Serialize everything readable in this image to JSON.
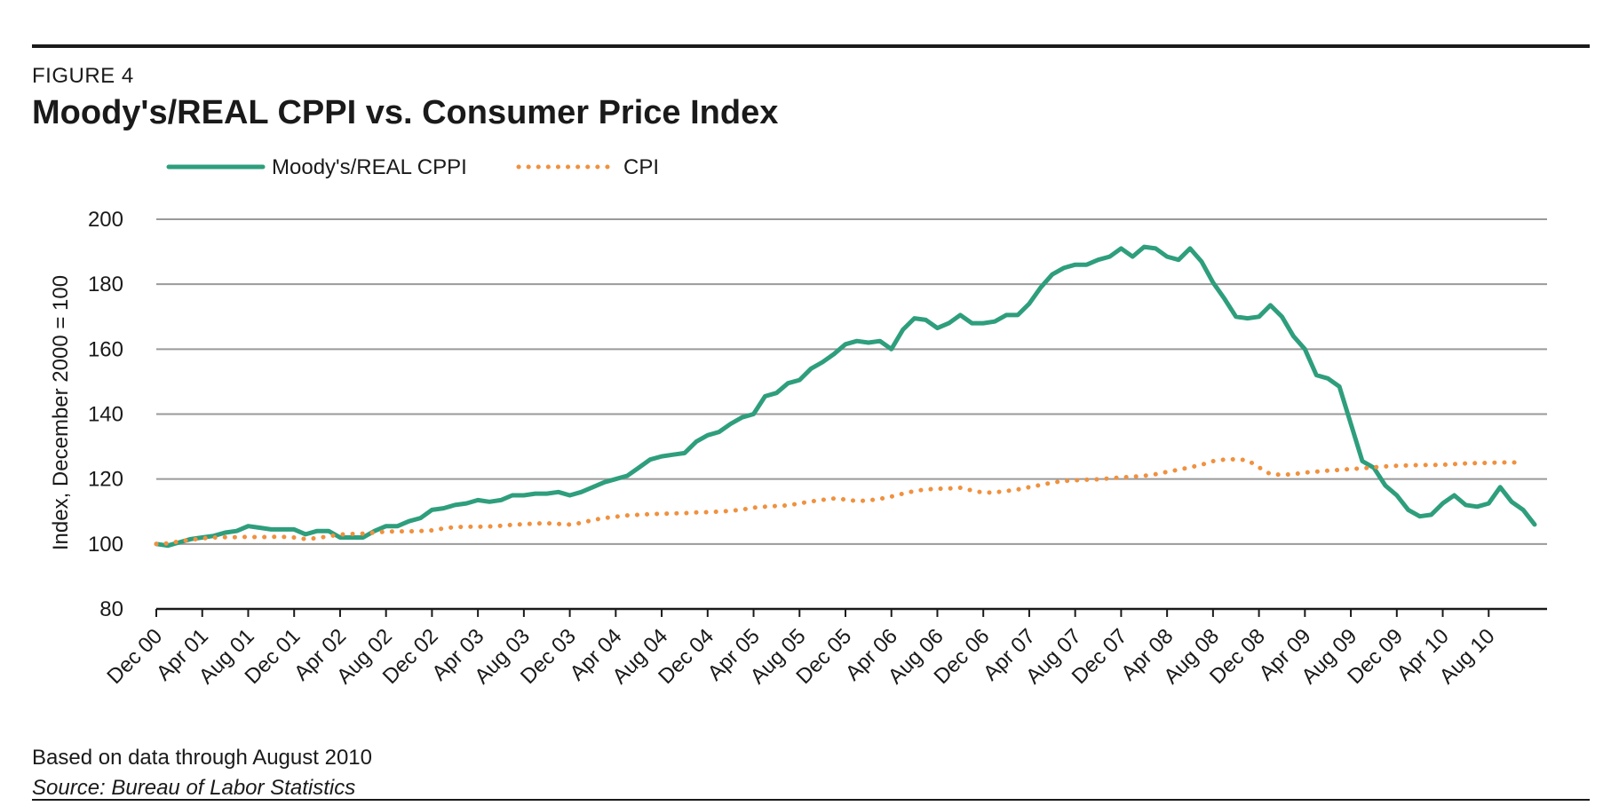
{
  "figure": {
    "label": "FIGURE 4",
    "title": "Moody's/REAL CPPI vs. Consumer Price Index",
    "note": "Based on data through August 2010",
    "source": "Source: Bureau of Labor Statistics"
  },
  "colors": {
    "cppi": "#2e9e7c",
    "cpi": "#f0913f",
    "grid": "#9a9a9a",
    "axis": "#1a1a1a"
  },
  "chart_data": {
    "type": "line",
    "title": "Moody's/REAL CPPI vs. Consumer Price Index",
    "xlabel": "",
    "ylabel": "Index, December 2000 = 100",
    "ylim": [
      80,
      200
    ],
    "yticks": [
      80,
      100,
      120,
      140,
      160,
      180,
      200
    ],
    "grid": true,
    "legend_position": "top-left",
    "x_tick_labels": [
      "Dec 00",
      "Apr 01",
      "Aug 01",
      "Dec 01",
      "Apr 02",
      "Aug 02",
      "Dec 02",
      "Apr 03",
      "Aug 03",
      "Dec 03",
      "Apr 04",
      "Aug 04",
      "Dec 04",
      "Apr 05",
      "Aug 05",
      "Dec 05",
      "Apr 06",
      "Aug 06",
      "Dec 06",
      "Apr 07",
      "Aug 07",
      "Dec 07",
      "Apr 08",
      "Aug 08",
      "Dec 08",
      "Apr 09",
      "Aug 09",
      "Dec 09",
      "Apr 10",
      "Aug 10"
    ],
    "x_start": "Dec 00",
    "x_end": "Aug 10",
    "series": [
      {
        "name": "Moody's/REAL CPPI",
        "style": "solid",
        "values": [
          100,
          99.5,
          100.5,
          101.5,
          102,
          102.5,
          103.5,
          104,
          105.5,
          105,
          104.5,
          104.5,
          104.5,
          103,
          104,
          104,
          102,
          102,
          102,
          104,
          105.5,
          105.5,
          107,
          108,
          110.5,
          111,
          112,
          112.5,
          113.5,
          113,
          113.5,
          115,
          115,
          115.5,
          115.5,
          116,
          115,
          116,
          117.5,
          119,
          120,
          121,
          123.5,
          126,
          127,
          127.5,
          128,
          131.5,
          133.5,
          134.5,
          137,
          139,
          140,
          145.5,
          146.5,
          149.5,
          150.5,
          154,
          156,
          158.5,
          161.5,
          162.5,
          162,
          162.5,
          160,
          166,
          169.5,
          169,
          166.5,
          168,
          170.5,
          168,
          168,
          168.5,
          170.5,
          170.5,
          174,
          179,
          183,
          185,
          186,
          186,
          187.5,
          188.5,
          191,
          188.5,
          191.5,
          191,
          188.5,
          187.5,
          191,
          187,
          180.5,
          175.5,
          170,
          169.5,
          170,
          173.5,
          170,
          164,
          160,
          152,
          151,
          148.5,
          137,
          125.5,
          123.5,
          118,
          115,
          110.5,
          108.5,
          109,
          112.5,
          115,
          112,
          111.5,
          112.5,
          117.5,
          113,
          110.5,
          106
        ]
      },
      {
        "name": "CPI",
        "style": "dotted",
        "values": [
          100,
          100.2,
          100.8,
          101.3,
          101.7,
          102,
          102.1,
          102.1,
          102.2,
          102.1,
          102.2,
          102.2,
          102,
          101.5,
          101.8,
          102.4,
          102.9,
          103.1,
          103.2,
          103.5,
          103.8,
          103.9,
          103.9,
          104,
          104.2,
          104.8,
          105.2,
          105.3,
          105.3,
          105.4,
          105.6,
          105.9,
          106.1,
          106.3,
          106.4,
          106.2,
          106,
          106.5,
          107.4,
          108,
          108.4,
          108.8,
          109,
          109.2,
          109.3,
          109.4,
          109.5,
          109.7,
          109.8,
          110,
          110.2,
          110.6,
          111.2,
          111.5,
          111.7,
          111.9,
          112.5,
          113.1,
          113.6,
          114,
          113.7,
          113.2,
          113.4,
          113.9,
          114.6,
          115.5,
          116.3,
          116.8,
          117,
          117.1,
          117.3,
          116.5,
          115.8,
          115.9,
          116.3,
          116.8,
          117.5,
          118.2,
          118.9,
          119.4,
          119.6,
          119.8,
          119.9,
          120.2,
          120.5,
          120.7,
          121,
          121.5,
          122.2,
          122.9,
          123.6,
          124.4,
          125.5,
          126,
          126.1,
          125.8,
          123.6,
          121.5,
          121.3,
          121.5,
          122,
          122.3,
          122.6,
          122.8,
          123.1,
          123.3,
          123.6,
          123.9,
          124.1,
          124.2,
          124.3,
          124.3,
          124.4,
          124.6,
          124.8,
          124.9,
          125,
          125.1,
          125.1,
          125.1
        ]
      }
    ]
  }
}
